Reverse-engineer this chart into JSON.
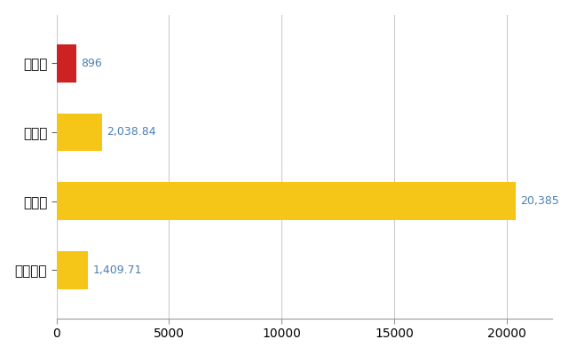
{
  "categories": [
    "加西市",
    "県平均",
    "県最大",
    "全国平均"
  ],
  "values": [
    896,
    2038.84,
    20385,
    1409.71
  ],
  "bar_colors": [
    "#cc2222",
    "#f5c518",
    "#f5c518",
    "#f5c518"
  ],
  "value_labels": [
    "896",
    "2,038.84",
    "20,385",
    "1,409.71"
  ],
  "xlim": [
    0,
    22000
  ],
  "xticks": [
    0,
    5000,
    10000,
    15000,
    20000
  ],
  "bar_height": 0.55,
  "grid_color": "#cccccc",
  "background_color": "#ffffff",
  "label_fontsize": 11,
  "tick_fontsize": 10,
  "value_fontsize": 9,
  "value_color": "#4a7fb5"
}
